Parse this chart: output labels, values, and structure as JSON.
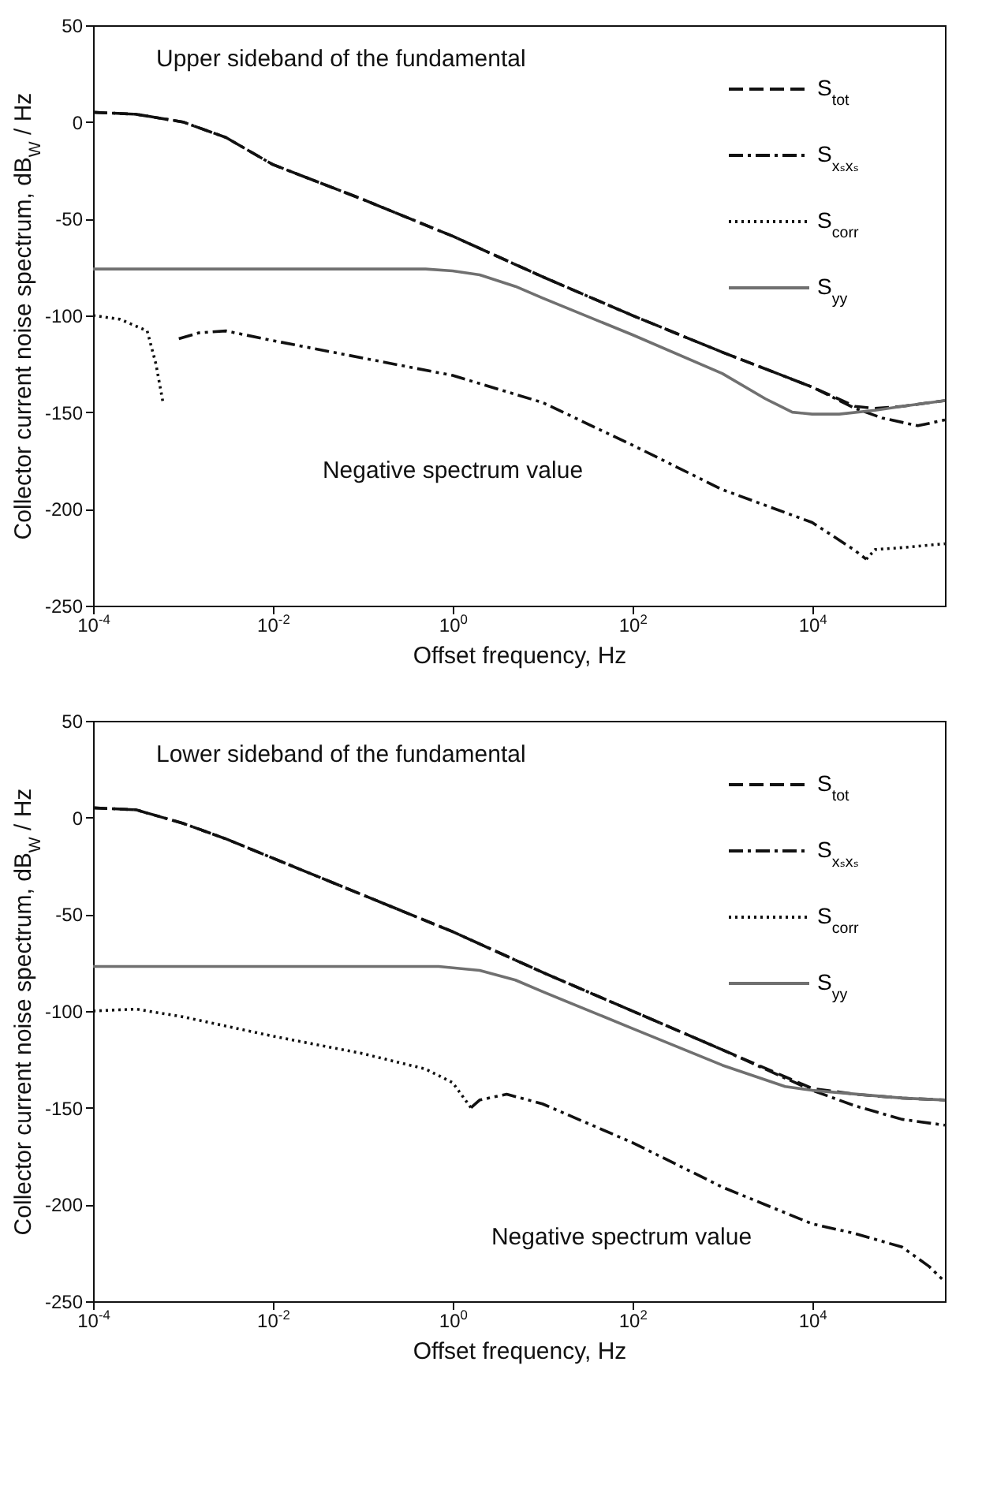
{
  "chart_data": [
    {
      "type": "line",
      "xlabel": "Offset frequency, Hz",
      "ylabel": "Collector current noise spectrum, dB$_{W}$ / Hz",
      "log": "x",
      "grid": false,
      "legend": "top right",
      "xlim": [
        0.0001,
        300000
      ],
      "xticks": [
        {
          "value": 0.0001,
          "label": "10$^{-4}$"
        },
        {
          "value": 0.01,
          "label": "10$^{-2}$"
        },
        {
          "value": 1,
          "label": "10$^{0}$"
        },
        {
          "value": 100,
          "label": "10$^{2}$"
        },
        {
          "value": 10000,
          "label": "10$^{4}$"
        }
      ],
      "ylim": [
        -250,
        50
      ],
      "yticks": [
        -250,
        -200,
        -150,
        -100,
        -50,
        0,
        50
      ],
      "annotations": [
        "Upper sideband of the fundamental",
        "Negative spectrum value"
      ],
      "series": [
        {
          "name": "S$_{tot}$",
          "color": "#111111",
          "line_style": "dashed",
          "x": [
            0.0001,
            0.0003,
            0.001,
            0.003,
            0.01,
            0.1,
            1,
            10,
            100,
            1000,
            10000,
            30000,
            50000,
            100000,
            300000
          ],
          "values": [
            5,
            4,
            0,
            -8,
            -22,
            -40,
            -59,
            -80,
            -100,
            -119,
            -137,
            -147,
            -148,
            -147,
            -144
          ]
        },
        {
          "name": "S$_{xₛxₛ}$",
          "color": "#111111",
          "line_style": "dashdot",
          "x": [
            0.0001,
            0.0003,
            0.001,
            0.003,
            0.01,
            0.1,
            1,
            10,
            100,
            1000,
            10000,
            30000,
            60000,
            150000,
            300000
          ],
          "values": [
            5,
            4,
            0,
            -8,
            -22,
            -40,
            -59,
            -80,
            -100,
            -119,
            -137,
            -148,
            -153,
            -157,
            -154
          ]
        },
        {
          "name": "S$_{corr}$",
          "color": "#111111",
          "line_style": "dotted",
          "x": [
            0.0001,
            0.0002,
            0.0004,
            0.0005,
            0.0006,
            0.001,
            40000,
            50000,
            100000,
            300000
          ],
          "values": [
            -100,
            -102,
            -108,
            -125,
            -145,
            null,
            -226,
            -221,
            -220,
            -218
          ]
        },
        {
          "name": "S$_{yy}$",
          "color": "#707070",
          "line_style": "solid",
          "x": [
            0.0001,
            0.01,
            0.5,
            1,
            2,
            5,
            10,
            100,
            1000,
            3000,
            6000,
            10000,
            20000,
            50000,
            100000,
            300000
          ],
          "values": [
            -76,
            -76,
            -76,
            -77,
            -79,
            -85,
            -91,
            -110,
            -130,
            -143,
            -150,
            -151,
            -151,
            -149,
            -147,
            -144
          ]
        },
        {
          "color": "#111111",
          "line_style": "dashdotdot",
          "x": [
            0.0009,
            0.0015,
            0.003,
            0.01,
            0.1,
            1,
            10,
            100,
            1000,
            10000,
            29000,
            40000
          ],
          "values": [
            -112,
            -109,
            -108,
            -113,
            -122,
            -131,
            -145,
            -167,
            -190,
            -207,
            -221,
            -226
          ]
        }
      ]
    },
    {
      "type": "line",
      "xlabel": "Offset frequency, Hz",
      "ylabel": "Collector current noise spectrum, dB$_{W}$ / Hz",
      "log": "x",
      "grid": false,
      "legend": "top right",
      "xlim": [
        0.0001,
        300000
      ],
      "xticks": [
        {
          "value": 0.0001,
          "label": "10$^{-4}$"
        },
        {
          "value": 0.01,
          "label": "10$^{-2}$"
        },
        {
          "value": 1,
          "label": "10$^{0}$"
        },
        {
          "value": 100,
          "label": "10$^{2}$"
        },
        {
          "value": 10000,
          "label": "10$^{4}$"
        }
      ],
      "ylim": [
        -250,
        50
      ],
      "yticks": [
        -250,
        -200,
        -150,
        -100,
        -50,
        0,
        50
      ],
      "annotations": [
        "Lower sideband of the fundamental",
        "Negative spectrum value"
      ],
      "series": [
        {
          "name": "S$_{tot}$",
          "color": "#111111",
          "line_style": "dashed",
          "x": [
            0.0001,
            0.0003,
            0.001,
            0.003,
            0.01,
            0.1,
            1,
            10,
            100,
            1000,
            10000,
            30000,
            100000,
            300000
          ],
          "values": [
            5,
            4,
            -3,
            -11,
            -21,
            -40,
            -59,
            -80,
            -100,
            -120,
            -140,
            -143,
            -145,
            -146
          ]
        },
        {
          "name": "S$_{xₛxₛ}$",
          "color": "#111111",
          "line_style": "dashdot",
          "x": [
            0.0001,
            0.0003,
            0.001,
            0.003,
            0.01,
            0.1,
            1,
            10,
            100,
            1000,
            10000,
            30000,
            100000,
            300000
          ],
          "values": [
            5,
            4,
            -3,
            -11,
            -21,
            -40,
            -59,
            -80,
            -100,
            -120,
            -141,
            -149,
            -156,
            -159
          ]
        },
        {
          "name": "S$_{corr}$",
          "color": "#111111",
          "line_style": "dotted",
          "x": [
            0.0001,
            0.0003,
            0.001,
            0.01,
            0.1,
            0.5,
            1,
            1.6
          ],
          "values": [
            -100,
            -99,
            -103,
            -113,
            -122,
            -130,
            -137,
            -150
          ]
        },
        {
          "name": "S$_{yy}$",
          "color": "#707070",
          "line_style": "solid",
          "x": [
            0.0001,
            0.01,
            0.7,
            2,
            5,
            10,
            100,
            1000,
            5000,
            10000,
            100000,
            300000
          ],
          "values": [
            -77,
            -77,
            -77,
            -79,
            -84,
            -90,
            -109,
            -128,
            -139,
            -141,
            -145,
            -146
          ]
        },
        {
          "color": "#111111",
          "line_style": "dashdotdot",
          "x": [
            1.6,
            2,
            4,
            10,
            100,
            1000,
            10000,
            30000,
            100000,
            200000,
            300000
          ],
          "values": [
            -150,
            -146,
            -143,
            -148,
            -168,
            -191,
            -210,
            -215,
            -222,
            -232,
            -240
          ]
        }
      ]
    }
  ]
}
